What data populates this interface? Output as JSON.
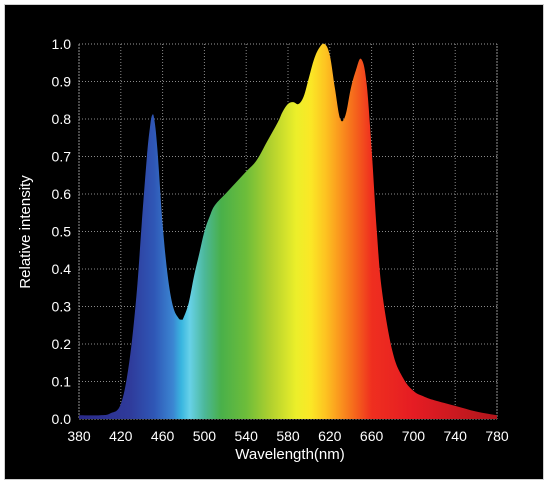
{
  "chart_data": {
    "type": "area",
    "title": "",
    "xlabel": "Wavelength(nm)",
    "ylabel": "Relative intensity",
    "xlim": [
      380,
      780
    ],
    "ylim": [
      0.0,
      1.0
    ],
    "xticks": [
      "380",
      "420",
      "460",
      "500",
      "540",
      "580",
      "620",
      "660",
      "700",
      "740",
      "780"
    ],
    "yticks": [
      "0.0",
      "0.1",
      "0.2",
      "0.3",
      "0.4",
      "0.5",
      "0.6",
      "0.7",
      "0.8",
      "0.9",
      "1.0"
    ],
    "grid": true,
    "fill": "visible-spectrum gradient",
    "series": [
      {
        "x": [
          380,
          400,
          410,
          420,
          428,
          435,
          440,
          445,
          448,
          450,
          452,
          455,
          460,
          465,
          470,
          475,
          478,
          480,
          485,
          490,
          495,
          500,
          505,
          510,
          520,
          530,
          540,
          550,
          560,
          570,
          575,
          580,
          585,
          590,
          595,
          600,
          605,
          610,
          615,
          620,
          625,
          630,
          635,
          640,
          645,
          650,
          655,
          660,
          665,
          670,
          680,
          690,
          700,
          710,
          720,
          740,
          760,
          780
        ],
        "y": [
          0.01,
          0.01,
          0.015,
          0.04,
          0.15,
          0.33,
          0.52,
          0.7,
          0.78,
          0.81,
          0.8,
          0.72,
          0.52,
          0.38,
          0.3,
          0.27,
          0.265,
          0.27,
          0.31,
          0.38,
          0.44,
          0.5,
          0.54,
          0.57,
          0.6,
          0.63,
          0.66,
          0.69,
          0.74,
          0.79,
          0.82,
          0.84,
          0.845,
          0.84,
          0.86,
          0.91,
          0.96,
          0.99,
          1.0,
          0.97,
          0.88,
          0.8,
          0.81,
          0.88,
          0.93,
          0.96,
          0.9,
          0.72,
          0.5,
          0.34,
          0.18,
          0.11,
          0.075,
          0.06,
          0.05,
          0.035,
          0.02,
          0.01
        ]
      }
    ]
  }
}
